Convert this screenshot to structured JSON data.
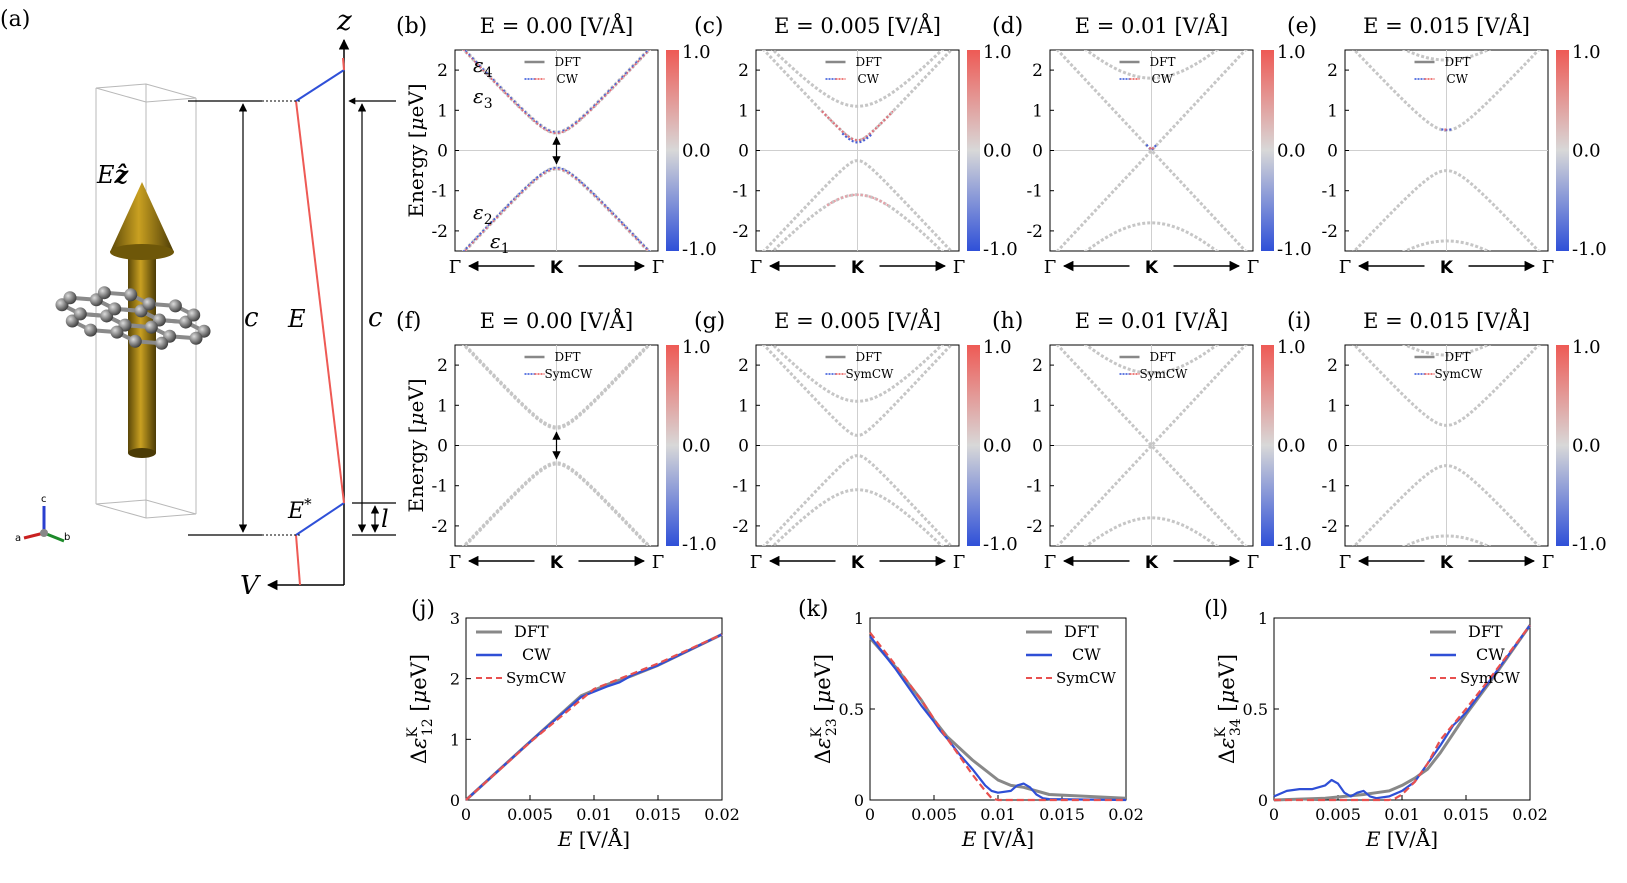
{
  "panel_labels": {
    "a": "(a)",
    "b": "(b)",
    "c": "(c)",
    "d": "(d)",
    "e": "(e)",
    "f": "(f)",
    "g": "(g)",
    "h": "(h)",
    "i": "(i)",
    "j": "(j)",
    "k": "(k)",
    "l": "(l)"
  },
  "schematic": {
    "field_label": "Êz",
    "field_label_base": "E",
    "field_label_vec": "ẑ",
    "cell_height_label": "c",
    "field_label2": "E",
    "cell_height_label2": "c",
    "estar_label": "E*",
    "estar_base": "E",
    "estar_sup": "*",
    "l_label": "l",
    "z_axis": "z",
    "v_axis": "V",
    "axes_triad": {
      "a": "a",
      "b": "b",
      "c": "c"
    }
  },
  "band_common": {
    "ylabel": "Energy [μeV]",
    "ylabel_base": "Energy [",
    "ylabel_mu": "μ",
    "ylabel_unit": "eV]",
    "yticks": [
      "2",
      "1",
      "0",
      "-1",
      "-2"
    ],
    "xticks": [
      "Γ",
      "K",
      "Γ"
    ],
    "colorbar_ticks": [
      "1.0",
      "0.0",
      "-1.0"
    ],
    "band_labels": [
      "ε4",
      "ε3",
      "ε2",
      "ε1"
    ],
    "ylim": [
      -2.5,
      2.5
    ]
  },
  "chart_data": [
    {
      "type": "line",
      "panel": "b",
      "title": "E = 0.00  [V/Å]",
      "legend": [
        "DFT",
        "CW"
      ],
      "gap": 0.43,
      "outer": null,
      "colored": "full"
    },
    {
      "type": "line",
      "panel": "c",
      "title": "E = 0.005  [V/Å]",
      "legend": [
        "DFT",
        "CW"
      ],
      "gap": 0.25,
      "outer": 1.1,
      "colored": "tip"
    },
    {
      "type": "line",
      "panel": "d",
      "title": "E = 0.01  [V/Å]",
      "legend": [
        "DFT",
        "CW"
      ],
      "gap": 0.0,
      "outer": 1.8,
      "colored": "tip"
    },
    {
      "type": "line",
      "panel": "e",
      "title": "E = 0.015  [V/Å]",
      "legend": [
        "DFT",
        "CW"
      ],
      "gap": 0.5,
      "outer": 2.25,
      "colored": "tip"
    },
    {
      "type": "line",
      "panel": "f",
      "title": "E = 0.00  [V/Å]",
      "legend": [
        "DFT",
        "SymCW"
      ],
      "gap": 0.43,
      "outer": null,
      "colored": "none"
    },
    {
      "type": "line",
      "panel": "g",
      "title": "E = 0.005  [V/Å]",
      "legend": [
        "DFT",
        "SymCW"
      ],
      "gap": 0.25,
      "outer": 1.1,
      "colored": "none"
    },
    {
      "type": "line",
      "panel": "h",
      "title": "E = 0.01  [V/Å]",
      "legend": [
        "DFT",
        "SymCW"
      ],
      "gap": 0.0,
      "outer": 1.8,
      "colored": "none"
    },
    {
      "type": "line",
      "panel": "i",
      "title": "E = 0.015  [V/Å]",
      "legend": [
        "DFT",
        "SymCW"
      ],
      "gap": 0.5,
      "outer": 2.25,
      "colored": "none"
    },
    {
      "type": "line",
      "panel": "j",
      "xlabel": "E  [V/Å]",
      "ylabel": "ΔεK12 [μeV]",
      "xlim": [
        0,
        0.02
      ],
      "ylim": [
        0,
        3
      ],
      "xticks": [
        "0",
        "0.005",
        "0.01",
        "0.015",
        "0.02"
      ],
      "yticks": [
        "0",
        "1",
        "2",
        "3"
      ],
      "legend": [
        "DFT",
        "CW",
        "SymCW"
      ],
      "series": [
        {
          "name": "DFT",
          "color": "#888888",
          "x": [
            0,
            0.005,
            0.009,
            0.011,
            0.013,
            0.015,
            0.02
          ],
          "y": [
            0,
            0.96,
            1.72,
            1.9,
            2.05,
            2.22,
            2.73
          ]
        },
        {
          "name": "CW",
          "color": "#2f4fd6",
          "x": [
            0,
            0.005,
            0.009,
            0.011,
            0.012,
            0.013,
            0.015,
            0.02
          ],
          "y": [
            0,
            0.96,
            1.7,
            1.87,
            1.94,
            2.06,
            2.22,
            2.73
          ]
        },
        {
          "name": "SymCW",
          "color": "#e8504f",
          "x": [
            0,
            0.005,
            0.01,
            0.015,
            0.02
          ],
          "y": [
            0,
            0.95,
            1.83,
            2.25,
            2.73
          ]
        }
      ]
    },
    {
      "type": "line",
      "panel": "k",
      "xlabel": "E  [V/Å]",
      "ylabel": "ΔεK23 [μeV]",
      "xlim": [
        0,
        0.02
      ],
      "ylim": [
        0,
        1
      ],
      "xticks": [
        "0",
        "0.005",
        "0.01",
        "0.015",
        "0.02"
      ],
      "yticks": [
        "0",
        "0.5",
        "1"
      ],
      "legend": [
        "DFT",
        "CW",
        "SymCW"
      ],
      "series": [
        {
          "name": "DFT",
          "color": "#888888",
          "x": [
            0,
            0.002,
            0.004,
            0.005,
            0.006,
            0.008,
            0.01,
            0.011,
            0.012,
            0.014,
            0.02
          ],
          "y": [
            0.89,
            0.73,
            0.55,
            0.44,
            0.35,
            0.22,
            0.11,
            0.08,
            0.07,
            0.03,
            0.01
          ]
        },
        {
          "name": "CW",
          "color": "#2f4fd6",
          "x": [
            0,
            0.002,
            0.004,
            0.005,
            0.0055,
            0.006,
            0.007,
            0.008,
            0.009,
            0.0095,
            0.01,
            0.011,
            0.0115,
            0.012,
            0.0125,
            0.013,
            0.0135,
            0.014,
            0.02
          ],
          "y": [
            0.9,
            0.72,
            0.52,
            0.43,
            0.38,
            0.34,
            0.25,
            0.17,
            0.08,
            0.05,
            0.04,
            0.05,
            0.08,
            0.09,
            0.07,
            0.03,
            0.01,
            0.005,
            0.0
          ]
        },
        {
          "name": "SymCW",
          "color": "#e8504f",
          "x": [
            0,
            0.002,
            0.004,
            0.006,
            0.008,
            0.009,
            0.0095,
            0.01,
            0.02
          ],
          "y": [
            0.92,
            0.74,
            0.55,
            0.34,
            0.14,
            0.05,
            0.01,
            0.0,
            0.0
          ]
        }
      ]
    },
    {
      "type": "line",
      "panel": "l",
      "xlabel": "E  [V/Å]",
      "ylabel": "ΔεK34 [μeV]",
      "xlim": [
        0,
        0.02
      ],
      "ylim": [
        0,
        1
      ],
      "xticks": [
        "0",
        "0.005",
        "0.01",
        "0.015",
        "0.02"
      ],
      "yticks": [
        "0",
        "0.5",
        "1"
      ],
      "legend": [
        "DFT",
        "CW",
        "SymCW"
      ],
      "series": [
        {
          "name": "DFT",
          "color": "#888888",
          "x": [
            0,
            0.004,
            0.007,
            0.008,
            0.009,
            0.01,
            0.011,
            0.012,
            0.013,
            0.015,
            0.017,
            0.02
          ],
          "y": [
            0.0,
            0.01,
            0.03,
            0.04,
            0.05,
            0.08,
            0.12,
            0.17,
            0.26,
            0.47,
            0.66,
            0.96
          ]
        },
        {
          "name": "CW",
          "color": "#2f4fd6",
          "x": [
            0,
            0.001,
            0.002,
            0.003,
            0.004,
            0.0045,
            0.005,
            0.0055,
            0.006,
            0.0065,
            0.007,
            0.0075,
            0.008,
            0.009,
            0.01,
            0.011,
            0.012,
            0.013,
            0.014,
            0.015,
            0.017,
            0.02
          ],
          "y": [
            0.02,
            0.05,
            0.06,
            0.06,
            0.08,
            0.11,
            0.09,
            0.04,
            0.02,
            0.04,
            0.05,
            0.02,
            0.01,
            0.02,
            0.05,
            0.1,
            0.2,
            0.3,
            0.41,
            0.48,
            0.67,
            0.96
          ]
        },
        {
          "name": "SymCW",
          "color": "#e8504f",
          "x": [
            0,
            0.009,
            0.0095,
            0.01,
            0.011,
            0.012,
            0.013,
            0.015,
            0.017,
            0.02
          ],
          "y": [
            0.0,
            0.0,
            0.01,
            0.03,
            0.1,
            0.2,
            0.33,
            0.5,
            0.68,
            0.96
          ]
        }
      ]
    }
  ]
}
